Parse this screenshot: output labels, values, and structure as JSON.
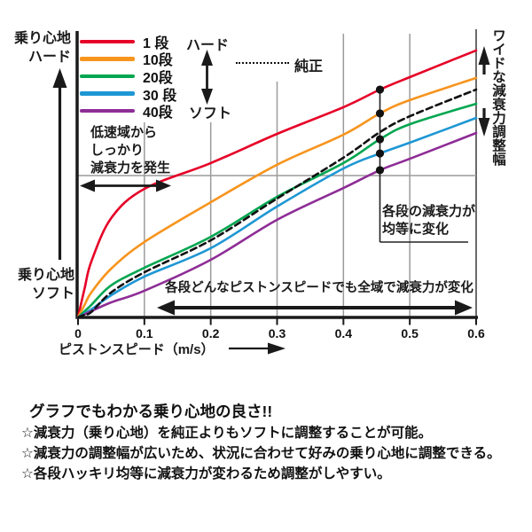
{
  "chart_data": {
    "type": "line",
    "xlabel": "ピストンスピード（m/s）",
    "x_ticks": [
      "0",
      "0.1",
      "0.2",
      "0.3",
      "0.4",
      "0.5",
      "0.6"
    ],
    "xlim": [
      0,
      0.6
    ],
    "ylim": [
      0,
      100
    ],
    "grid": "vertical lines each 0.1 m/s, one horizontal mid line",
    "legend_position": "top-left",
    "y_axis_top_label": "乗り心地\nハード",
    "y_axis_bottom_label": "乗り心地\nソフト",
    "legend_hard": "ハード",
    "legend_soft": "ソフト",
    "right_label": "ワイドな減衰力調整幅",
    "marker_x": 0.455,
    "x": [
      0,
      0.01,
      0.02,
      0.05,
      0.1,
      0.2,
      0.3,
      0.4,
      0.455,
      0.5,
      0.6
    ],
    "series": [
      {
        "name": "1 段",
        "color": "#e60027",
        "style": "solid",
        "marker": true,
        "values": [
          0,
          10.3,
          19.7,
          35.0,
          45.3,
          54.4,
          64.7,
          74.1,
          80.3,
          84.7,
          94.1
        ]
      },
      {
        "name": "10段",
        "color": "#f7941d",
        "style": "solid",
        "marker": true,
        "values": [
          0,
          4.5,
          8.8,
          17.2,
          26.6,
          40.6,
          53.8,
          64.4,
          71.9,
          76.6,
          84.4
        ]
      },
      {
        "name": "20段",
        "color": "#00a650",
        "style": "solid",
        "marker": true,
        "values": [
          0,
          2.2,
          4.4,
          11.3,
          17.5,
          28.4,
          42.5,
          54.4,
          62.8,
          68.1,
          75.3
        ]
      },
      {
        "name": "30 段",
        "color": "#1e97d4",
        "style": "solid",
        "marker": true,
        "values": [
          0,
          1.4,
          2.8,
          7.8,
          14.4,
          24.4,
          39.1,
          52.5,
          57.8,
          61.6,
          70.3
        ]
      },
      {
        "name": "40段",
        "color": "#8e2d96",
        "style": "solid",
        "marker": true,
        "values": [
          0,
          1.1,
          2.2,
          5.3,
          9.4,
          20.3,
          34.4,
          45.6,
          51.9,
          55.9,
          65.0
        ]
      },
      {
        "name": "純正",
        "color": "#111111",
        "style": "dashed",
        "marker": false,
        "values": [
          0,
          1.0,
          1.9,
          8.8,
          15.9,
          27.2,
          41.9,
          56.3,
          65.3,
          70.9,
          80.3
        ]
      }
    ],
    "annotations": {
      "low_speed": "低速域から\nしっかり\n減衰力を発生",
      "equal_change": "各段の減衰力が\n均等に変化",
      "full_range": "各段どんなピストンスピードでも全域で減衰力が変化"
    }
  },
  "notes": {
    "heading": "グラフでもわかる乗り心地の良さ!!",
    "bullets": [
      "☆減衰力（乗り心地）を純正よりもソフトに調整することが可能。",
      "☆減衰力の調整幅が広いため、状況に合わせて好みの乗り心地に調整できる。",
      "☆各段ハッキリ均等に減衰力が変わるため調整がしやすい。"
    ]
  }
}
